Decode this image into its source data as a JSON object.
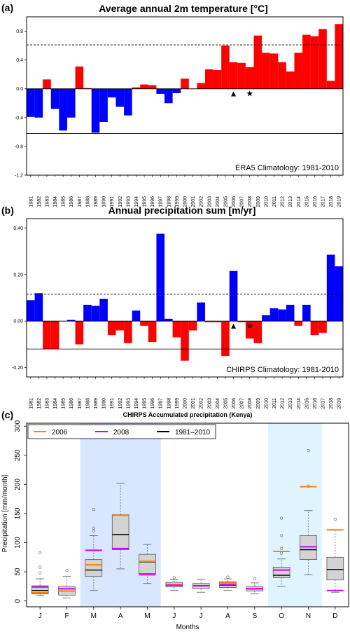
{
  "chart_data": [
    {
      "type": "bar",
      "panel_label": "(a)",
      "title": "Average annual 2m temperature [°C]",
      "climatology_label": "ERA5 Climatology: 1981-2010",
      "ylim": [
        -1.2,
        1.0
      ],
      "yticks": [
        -1.2,
        -0.8,
        -0.4,
        0.0,
        0.4,
        0.8
      ],
      "ytick_labels": [
        "-1.2",
        "-0.8",
        "-0.4",
        "0.0",
        "0.4",
        "0.8"
      ],
      "categories": [
        "1981",
        "1982",
        "1983",
        "1984",
        "1985",
        "1986",
        "1987",
        "1988",
        "1989",
        "1990",
        "1991",
        "1992",
        "1993",
        "1994",
        "1995",
        "1996",
        "1997",
        "1998",
        "1999",
        "2000",
        "2001",
        "2002",
        "2003",
        "2004",
        "2005",
        "2006",
        "2007",
        "2008",
        "2009",
        "2010",
        "2011",
        "2012",
        "2013",
        "2014",
        "2015",
        "2016",
        "2017",
        "2018",
        "2019"
      ],
      "values": [
        -0.39,
        -0.4,
        0.13,
        -0.28,
        -0.58,
        -0.4,
        0.31,
        0.01,
        -0.61,
        -0.46,
        -0.12,
        -0.25,
        -0.37,
        0.02,
        0.06,
        0.05,
        -0.07,
        -0.2,
        -0.06,
        0.14,
        0.0,
        0.08,
        0.27,
        0.26,
        0.6,
        0.37,
        0.36,
        0.3,
        0.74,
        0.5,
        0.49,
        0.37,
        0.24,
        0.5,
        0.75,
        0.73,
        0.83,
        0.11,
        0.9
      ],
      "positive_color": "#ff0000",
      "negative_color": "#0000ff",
      "upper_dashed_line": 0.61,
      "lower_solid_line": -0.62,
      "markers": [
        {
          "year": "2006",
          "symbol": "▲"
        },
        {
          "year": "2008",
          "symbol": "★"
        }
      ]
    },
    {
      "type": "bar",
      "panel_label": "(b)",
      "title": "Annual precipitation sum [m/yr]",
      "climatology_label": "CHIRPS Climatology: 1981-2010",
      "ylim": [
        -0.24,
        0.44
      ],
      "yticks": [
        -0.2,
        0.0,
        0.2,
        0.4
      ],
      "ytick_labels": [
        "-0.20",
        "0.00",
        "0.20",
        "0.40"
      ],
      "categories": [
        "1981",
        "1982",
        "1983",
        "1984",
        "1985",
        "1986",
        "1987",
        "1988",
        "1989",
        "1990",
        "1991",
        "1992",
        "1993",
        "1994",
        "1995",
        "1996",
        "1997",
        "1998",
        "1999",
        "2000",
        "2001",
        "2002",
        "2003",
        "2004",
        "2005",
        "2006",
        "2007",
        "2008",
        "2009",
        "2010",
        "2011",
        "2012",
        "2013",
        "2014",
        "2015",
        "2016",
        "2017",
        "2018",
        "2019"
      ],
      "values": [
        0.09,
        0.12,
        -0.12,
        -0.12,
        0.0,
        0.005,
        -0.1,
        0.07,
        0.065,
        0.095,
        -0.06,
        -0.04,
        -0.095,
        0.045,
        -0.02,
        -0.09,
        0.375,
        0.01,
        -0.07,
        -0.17,
        -0.04,
        0.08,
        -0.005,
        -0.005,
        -0.15,
        0.215,
        -0.005,
        -0.075,
        -0.095,
        0.025,
        0.055,
        0.05,
        0.07,
        -0.02,
        0.07,
        -0.06,
        -0.05,
        0.285,
        0.235
      ],
      "positive_color": "#0000ff",
      "negative_color": "#ff0000",
      "upper_dashed_line": 0.115,
      "lower_solid_line": -0.12,
      "markers": [
        {
          "year": "2006",
          "symbol": "▲"
        },
        {
          "year": "2008",
          "symbol": "★"
        }
      ]
    },
    {
      "type": "box",
      "panel_label": "(c)",
      "title": "CHIRPS Accumulated precipitation (Kenya)",
      "xlabel": "Months",
      "ylabel": "Precipitation [mm/month]",
      "ylim": [
        -10,
        305
      ],
      "yticks": [
        0,
        50,
        100,
        150,
        200,
        250,
        300
      ],
      "ytick_labels": [
        "0",
        "50",
        "100",
        "150",
        "200",
        "250",
        "300"
      ],
      "categories": [
        "J",
        "F",
        "M",
        "A",
        "M",
        "J",
        "J",
        "A",
        "S",
        "O",
        "N",
        "D"
      ],
      "legend": [
        {
          "name": "2006",
          "color": "#ff7f00"
        },
        {
          "name": "2008",
          "color": "#cc00ff"
        },
        {
          "name": "1981–2010",
          "color": "#000000"
        }
      ],
      "shaded_bands": [
        {
          "from_index": 2,
          "to_index": 4,
          "color": "#d9e6ff"
        },
        {
          "from_index": 9,
          "to_index": 10,
          "color": "#dff4ff"
        }
      ],
      "boxes": [
        {
          "min": 10,
          "q1": 12,
          "median": 18,
          "q3": 26,
          "max": 38,
          "outliers": [
            48,
            58,
            83
          ]
        },
        {
          "min": 5,
          "q1": 10,
          "median": 17,
          "q3": 25,
          "max": 42,
          "outliers": [
            52
          ]
        },
        {
          "min": 18,
          "q1": 42,
          "median": 53,
          "q3": 71,
          "max": 112,
          "outliers": [
            120,
            125,
            157
          ]
        },
        {
          "min": 55,
          "q1": 88,
          "median": 114,
          "q3": 148,
          "max": 202,
          "outliers": []
        },
        {
          "min": 30,
          "q1": 47,
          "median": 67,
          "q3": 80,
          "max": 97,
          "outliers": []
        },
        {
          "min": 18,
          "q1": 24,
          "median": 28,
          "q3": 32,
          "max": 37,
          "outliers": [
            40
          ]
        },
        {
          "min": 15,
          "q1": 21,
          "median": 26,
          "q3": 30,
          "max": 37,
          "outliers": []
        },
        {
          "min": 18,
          "q1": 23,
          "median": 27,
          "q3": 33,
          "max": 38,
          "outliers": [
            41
          ]
        },
        {
          "min": 12,
          "q1": 17,
          "median": 21,
          "q3": 25,
          "max": 31,
          "outliers": [
            38
          ]
        },
        {
          "min": 25,
          "q1": 40,
          "median": 44,
          "q3": 58,
          "max": 72,
          "outliers": [
            82,
            90,
            112,
            142
          ]
        },
        {
          "min": 45,
          "q1": 71,
          "median": 88,
          "q3": 112,
          "max": 155,
          "outliers": [
            197,
            258
          ]
        },
        {
          "min": 15,
          "q1": 36,
          "median": 54,
          "q3": 75,
          "max": 122,
          "outliers": [
            140
          ]
        }
      ],
      "values_2006": [
        14,
        17,
        62,
        147,
        68,
        28,
        26,
        31,
        21,
        85,
        196,
        122
      ],
      "values_2008": [
        24,
        21,
        87,
        90,
        45,
        27,
        26,
        28,
        21,
        53,
        93,
        18
      ]
    }
  ]
}
